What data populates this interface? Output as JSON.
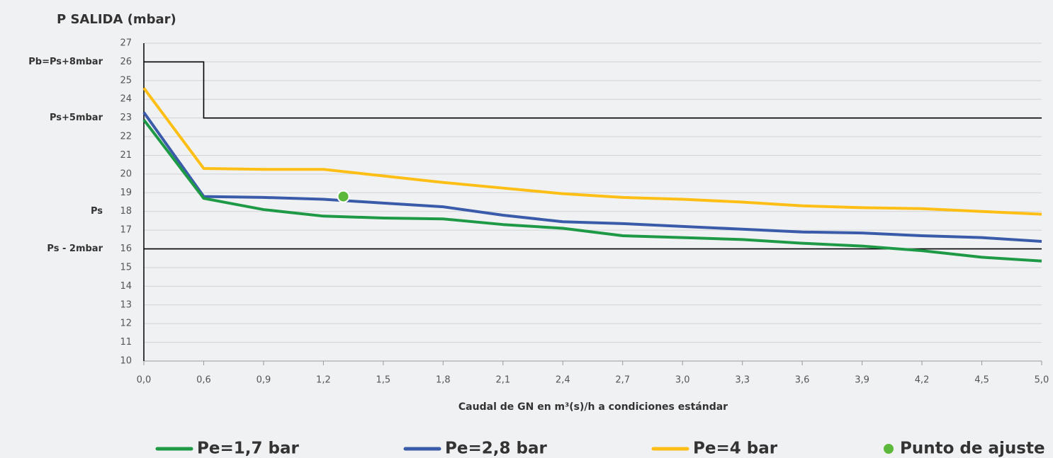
{
  "chart_data": {
    "type": "line",
    "title": "P SALIDA (mbar)",
    "x_label": "Caudal de GN en m³(s)/h a condiciones estándar",
    "xticks": [
      {
        "value": 0,
        "label": "0,0"
      },
      {
        "value": 0.6,
        "label": "0,6"
      },
      {
        "value": 0.9,
        "label": "0,9"
      },
      {
        "value": 1.2,
        "label": "1,2"
      },
      {
        "value": 1.5,
        "label": "1,5"
      },
      {
        "value": 1.8,
        "label": "1,8"
      },
      {
        "value": 2.1,
        "label": "2,1"
      },
      {
        "value": 2.4,
        "label": "2,4"
      },
      {
        "value": 2.7,
        "label": "2,7"
      },
      {
        "value": 3,
        "label": "3,0"
      },
      {
        "value": 3.3,
        "label": "3,3"
      },
      {
        "value": 3.6,
        "label": "3,6"
      },
      {
        "value": 3.9,
        "label": "3,9"
      },
      {
        "value": 4.2,
        "label": "4,2"
      },
      {
        "value": 4.5,
        "label": "4,5"
      },
      {
        "value": 5,
        "label": "5,0"
      }
    ],
    "x": [
      0,
      0.6,
      0.9,
      1.2,
      1.5,
      1.8,
      2.1,
      2.4,
      2.7,
      3,
      3.3,
      3.6,
      3.9,
      4.2,
      4.5,
      5
    ],
    "ylim": [
      10,
      27
    ],
    "yticks": [
      10,
      11,
      12,
      13,
      14,
      15,
      16,
      17,
      18,
      19,
      20,
      21,
      22,
      23,
      24,
      25,
      26,
      27
    ],
    "grid": true,
    "series": [
      {
        "name": "Pe=1,7 bar",
        "color": "#1e9a47",
        "values": [
          22.9,
          18.7,
          18.1,
          17.75,
          17.65,
          17.6,
          17.3,
          17.1,
          16.7,
          16.6,
          16.5,
          16.3,
          16.15,
          15.9,
          15.55,
          15.35
        ]
      },
      {
        "name": "Pe=2,8 bar",
        "color": "#3a5ba9",
        "values": [
          23.3,
          18.8,
          18.75,
          18.65,
          18.45,
          18.25,
          17.8,
          17.45,
          17.35,
          17.2,
          17.05,
          16.9,
          16.85,
          16.7,
          16.6,
          16.4
        ]
      },
      {
        "name": "Pe=4 bar",
        "color": "#fdbf16",
        "values": [
          24.6,
          20.3,
          20.25,
          20.25,
          19.9,
          19.55,
          19.25,
          18.95,
          18.75,
          18.65,
          18.5,
          18.3,
          18.2,
          18.15,
          18.0,
          17.85
        ]
      }
    ],
    "limit_lines": [
      {
        "color": "#000000",
        "x": [
          0,
          0.6,
          0.6,
          5
        ],
        "values": [
          26,
          26,
          23,
          23
        ]
      },
      {
        "color": "#000000",
        "x": [
          0,
          5
        ],
        "values": [
          16,
          16
        ]
      }
    ],
    "point": {
      "name": "Punto de ajuste",
      "color": "#5cb83a",
      "x": 1.3,
      "y": 18.8
    },
    "y_annotations": [
      {
        "value": 26,
        "label": "Pb=Ps+8mbar"
      },
      {
        "value": 23,
        "label": "Ps+5mbar"
      },
      {
        "value": 18,
        "label": "Ps"
      },
      {
        "value": 16,
        "label": "Ps - 2mbar"
      }
    ]
  }
}
